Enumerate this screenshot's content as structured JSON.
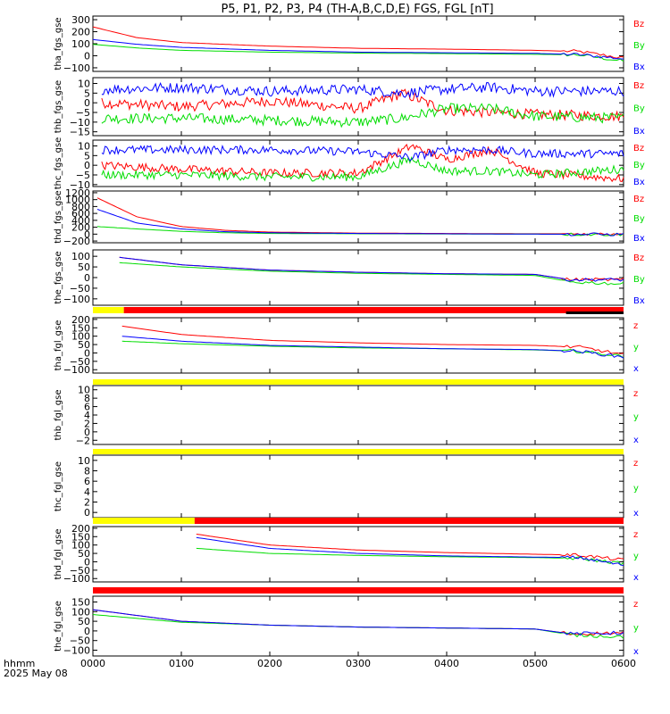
{
  "title": "P5, P1, P2, P3, P4 (TH-A,B,C,D,E) FGS, FGL [nT]",
  "footer": {
    "time_label": "hhmm",
    "date_label": "2025 May 08"
  },
  "colors": {
    "x": "#0000ff",
    "y": "#00dd00",
    "z": "#ff0000",
    "bar_yellow": "#ffff00",
    "bar_red": "#ff0000",
    "bar_black": "#000000"
  },
  "chart_data": {
    "type": "line",
    "x_axis": {
      "ticks": [
        "0000",
        "0100",
        "0200",
        "0300",
        "0400",
        "0500",
        "0600"
      ],
      "range_hours": [
        0,
        6
      ]
    },
    "panels": [
      {
        "ylabel": "tha_fgs_gse",
        "ylim": [
          -130,
          330
        ],
        "yticks": [
          "300",
          "200",
          "100",
          "0",
          "−100"
        ],
        "yvals": [
          300,
          200,
          100,
          0,
          -100
        ],
        "legend": [
          "Bz",
          "By",
          "Bx"
        ],
        "start": 0.0,
        "end": 6.0,
        "noisy": false,
        "series": [
          {
            "name": "Bz",
            "color": "#ff0000",
            "x": [
              0,
              0.5,
              1,
              2,
              3,
              4,
              5,
              5.5,
              6
            ],
            "y": [
              240,
              150,
              110,
              80,
              62,
              55,
              45,
              35,
              -20
            ]
          },
          {
            "name": "By",
            "color": "#00dd00",
            "x": [
              0,
              0.5,
              1,
              2,
              3,
              4,
              5,
              5.5,
              6
            ],
            "y": [
              95,
              65,
              45,
              30,
              22,
              18,
              12,
              8,
              -45
            ]
          },
          {
            "name": "Bx",
            "color": "#0000ff",
            "x": [
              0,
              0.5,
              1,
              2,
              3,
              4,
              5,
              5.5,
              6
            ],
            "y": [
              135,
              95,
              70,
              45,
              30,
              25,
              20,
              10,
              -25
            ]
          }
        ]
      },
      {
        "ylabel": "thb_fgs_gse",
        "ylim": [
          -17,
          13
        ],
        "yticks": [
          "10",
          "5",
          "0",
          "−5",
          "−10",
          "−15"
        ],
        "yvals": [
          10,
          5,
          0,
          -5,
          -10,
          -15
        ],
        "legend": [
          "Bz",
          "By",
          "Bx"
        ],
        "start": 0.1,
        "end": 6.0,
        "noisy": true,
        "series": [
          {
            "name": "Bz",
            "color": "#ff0000",
            "x": [
              0.1,
              1,
              2,
              3,
              3.5,
              4,
              4.5,
              5,
              6
            ],
            "y": [
              0,
              -2,
              1,
              -3,
              5,
              -4,
              -5,
              -6,
              -7
            ]
          },
          {
            "name": "By",
            "color": "#00dd00",
            "x": [
              0.1,
              1,
              2,
              3,
              3.5,
              4,
              4.5,
              5,
              6
            ],
            "y": [
              -8,
              -8,
              -9,
              -10,
              -8,
              -3,
              -3,
              -7,
              -8
            ]
          },
          {
            "name": "Bx",
            "color": "#0000ff",
            "x": [
              0.1,
              1,
              2,
              3,
              3.5,
              4,
              4.5,
              5,
              6
            ],
            "y": [
              7,
              8,
              6,
              7,
              5,
              7,
              8,
              6,
              6
            ]
          }
        ]
      },
      {
        "ylabel": "thc_fgs_gse",
        "ylim": [
          -11,
          13
        ],
        "yticks": [
          "10",
          "5",
          "0",
          "−5",
          "−10"
        ],
        "yvals": [
          10,
          5,
          0,
          -5,
          -10
        ],
        "legend": [
          "Bz",
          "By",
          "Bx"
        ],
        "start": 0.1,
        "end": 6.0,
        "noisy": true,
        "series": [
          {
            "name": "Bz",
            "color": "#ff0000",
            "x": [
              0.1,
              1,
              2,
              3,
              3.6,
              4,
              4.5,
              5,
              6
            ],
            "y": [
              0,
              -2,
              -4,
              -4,
              10,
              3,
              8,
              -4,
              -7
            ]
          },
          {
            "name": "By",
            "color": "#00dd00",
            "x": [
              0.1,
              1,
              2,
              3,
              3.6,
              4,
              4.5,
              5,
              6
            ],
            "y": [
              -5,
              -5,
              -6,
              -6,
              3,
              -3,
              -3,
              -5,
              -2
            ]
          },
          {
            "name": "Bx",
            "color": "#0000ff",
            "x": [
              0.1,
              1,
              2,
              3,
              3.6,
              4,
              4.5,
              5,
              6
            ],
            "y": [
              8,
              8,
              8,
              7,
              4,
              8,
              8,
              6,
              6
            ]
          }
        ]
      },
      {
        "ylabel": "thd_fgs_gse",
        "ylim": [
          -250,
          1250
        ],
        "yticks": [
          "1200",
          "1000",
          "800",
          "600",
          "400",
          "200",
          "0",
          "−200"
        ],
        "yvals": [
          1200,
          1000,
          800,
          600,
          400,
          200,
          0,
          -200
        ],
        "legend": [
          "Bz",
          "By",
          "Bx"
        ],
        "start": 0.05,
        "end": 6.0,
        "noisy": false,
        "series": [
          {
            "name": "Bz",
            "color": "#ff0000",
            "x": [
              0.05,
              0.5,
              1,
              1.5,
              2,
              3,
              4,
              5,
              6
            ],
            "y": [
              1050,
              500,
              220,
              110,
              60,
              30,
              20,
              10,
              10
            ]
          },
          {
            "name": "By",
            "color": "#00dd00",
            "x": [
              0.05,
              0.5,
              1,
              1.5,
              2,
              3,
              4,
              5,
              6
            ],
            "y": [
              220,
              150,
              80,
              40,
              20,
              10,
              5,
              0,
              -10
            ]
          },
          {
            "name": "Bx",
            "color": "#0000ff",
            "x": [
              0.05,
              0.5,
              1,
              1.5,
              2,
              3,
              4,
              5,
              6
            ],
            "y": [
              720,
              320,
              150,
              70,
              40,
              20,
              10,
              0,
              -10
            ]
          }
        ]
      },
      {
        "ylabel": "the_fgs_gse",
        "ylim": [
          -130,
          130
        ],
        "yticks": [
          "100",
          "50",
          "0",
          "−50",
          "−100"
        ],
        "yvals": [
          100,
          50,
          0,
          -50,
          -100
        ],
        "legend": [
          "Bz",
          "By",
          "Bx"
        ],
        "start": 0.3,
        "end": 6.0,
        "noisy": false,
        "series": [
          {
            "name": "Bz",
            "color": "#ff0000",
            "x": [
              0.3,
              1,
              2,
              3,
              4,
              5,
              5.4,
              6
            ],
            "y": [
              95,
              60,
              35,
              25,
              18,
              15,
              -10,
              -10
            ]
          },
          {
            "name": "By",
            "color": "#00dd00",
            "x": [
              0.3,
              1,
              2,
              3,
              4,
              5,
              5.4,
              6
            ],
            "y": [
              70,
              50,
              30,
              20,
              15,
              10,
              -20,
              -30
            ]
          },
          {
            "name": "Bx",
            "color": "#0000ff",
            "x": [
              0.3,
              1,
              2,
              3,
              4,
              5,
              5.4,
              6
            ],
            "y": [
              95,
              60,
              35,
              25,
              18,
              15,
              -10,
              -10
            ]
          }
        ]
      },
      {
        "ylabel": "tha_fgl_gse",
        "ylim": [
          -120,
          210
        ],
        "yticks": [
          "200",
          "150",
          "100",
          "50",
          "0",
          "−50",
          "−100"
        ],
        "yvals": [
          200,
          150,
          100,
          50,
          0,
          -50,
          -100
        ],
        "legend": [
          "z",
          "y",
          "x"
        ],
        "start": 0.33,
        "end": 6.0,
        "noisy": false,
        "series": [
          {
            "name": "z",
            "color": "#ff0000",
            "x": [
              0.33,
              1,
              2,
              3,
              4,
              5,
              5.5,
              6
            ],
            "y": [
              160,
              110,
              75,
              60,
              50,
              45,
              35,
              -10
            ]
          },
          {
            "name": "y",
            "color": "#00dd00",
            "x": [
              0.33,
              1,
              2,
              3,
              4,
              5,
              5.5,
              6
            ],
            "y": [
              70,
              55,
              40,
              30,
              25,
              18,
              10,
              -20
            ]
          },
          {
            "name": "x",
            "color": "#0000ff",
            "x": [
              0.33,
              1,
              2,
              3,
              4,
              5,
              5.5,
              6
            ],
            "y": [
              100,
              70,
              45,
              35,
              25,
              20,
              10,
              -25
            ]
          }
        ]
      },
      {
        "ylabel": "thb_fgl_gse",
        "ylim": [
          -3,
          11
        ],
        "yticks": [
          "10",
          "8",
          "6",
          "4",
          "2",
          "0",
          "−2"
        ],
        "yvals": [
          10,
          8,
          6,
          4,
          2,
          0,
          -2
        ],
        "legend": [
          "z",
          "y",
          "x"
        ],
        "start": 0,
        "end": 0,
        "noisy": false,
        "series": []
      },
      {
        "ylabel": "thc_fgl_gse",
        "ylim": [
          -1,
          11
        ],
        "yticks": [
          "10",
          "8",
          "6",
          "4",
          "2",
          "0"
        ],
        "yvals": [
          10,
          8,
          6,
          4,
          2,
          0
        ],
        "legend": [
          "z",
          "y",
          "x"
        ],
        "start": 0,
        "end": 0,
        "noisy": false,
        "series": []
      },
      {
        "ylabel": "thd_fgl_gse",
        "ylim": [
          -120,
          210
        ],
        "yticks": [
          "200",
          "150",
          "100",
          "50",
          "0",
          "−50",
          "−100"
        ],
        "yvals": [
          200,
          150,
          100,
          50,
          0,
          -50,
          -100
        ],
        "legend": [
          "z",
          "y",
          "x"
        ],
        "start": 1.17,
        "end": 6.0,
        "noisy": false,
        "series": [
          {
            "name": "z",
            "color": "#ff0000",
            "x": [
              1.17,
              2,
              3,
              4,
              5,
              5.5,
              6
            ],
            "y": [
              165,
              100,
              70,
              55,
              45,
              40,
              10
            ]
          },
          {
            "name": "y",
            "color": "#00dd00",
            "x": [
              1.17,
              2,
              3,
              4,
              5,
              5.5,
              6
            ],
            "y": [
              80,
              50,
              38,
              30,
              25,
              20,
              -10
            ]
          },
          {
            "name": "x",
            "color": "#0000ff",
            "x": [
              1.17,
              2,
              3,
              4,
              5,
              5.5,
              6
            ],
            "y": [
              145,
              80,
              50,
              35,
              28,
              25,
              -20
            ]
          }
        ]
      },
      {
        "ylabel": "the_fgl_gse",
        "ylim": [
          -130,
          180
        ],
        "yticks": [
          "150",
          "100",
          "50",
          "0",
          "−50",
          "−100"
        ],
        "yvals": [
          150,
          100,
          50,
          0,
          -50,
          -100
        ],
        "legend": [
          "z",
          "y",
          "x"
        ],
        "start": 0.0,
        "end": 6.0,
        "noisy": false,
        "series": [
          {
            "name": "z",
            "color": "#ff0000",
            "x": [
              0,
              1,
              2,
              3,
              4,
              5,
              5.4,
              6
            ],
            "y": [
              110,
              50,
              30,
              20,
              15,
              10,
              -15,
              -10
            ]
          },
          {
            "name": "y",
            "color": "#00dd00",
            "x": [
              0,
              1,
              2,
              3,
              4,
              5,
              5.4,
              6
            ],
            "y": [
              85,
              45,
              30,
              20,
              15,
              10,
              -20,
              -30
            ]
          },
          {
            "name": "x",
            "color": "#0000ff",
            "x": [
              0,
              1,
              2,
              3,
              4,
              5,
              5.4,
              6
            ],
            "y": [
              110,
              50,
              30,
              20,
              15,
              10,
              -15,
              -10
            ]
          }
        ]
      }
    ],
    "status_bars": [
      {
        "after_panel": 4,
        "segments": [
          {
            "from": 0.0,
            "to": 0.35,
            "color": "#ffff00"
          },
          {
            "from": 0.35,
            "to": 6.0,
            "color": "#ff0000"
          }
        ],
        "black": [
          5.35,
          6.0
        ]
      },
      {
        "after_panel": 5,
        "segments": [
          {
            "from": 0.0,
            "to": 6.0,
            "color": "#ffff00"
          }
        ]
      },
      {
        "after_panel": 6,
        "segments": [
          {
            "from": 0.0,
            "to": 6.0,
            "color": "#ffff00"
          }
        ]
      },
      {
        "after_panel": 7,
        "segments": [
          {
            "from": 0.0,
            "to": 1.15,
            "color": "#ffff00"
          },
          {
            "from": 1.15,
            "to": 6.0,
            "color": "#ff0000"
          }
        ]
      },
      {
        "after_panel": 8,
        "segments": [
          {
            "from": 0.0,
            "to": 6.0,
            "color": "#ff0000"
          }
        ]
      }
    ]
  }
}
